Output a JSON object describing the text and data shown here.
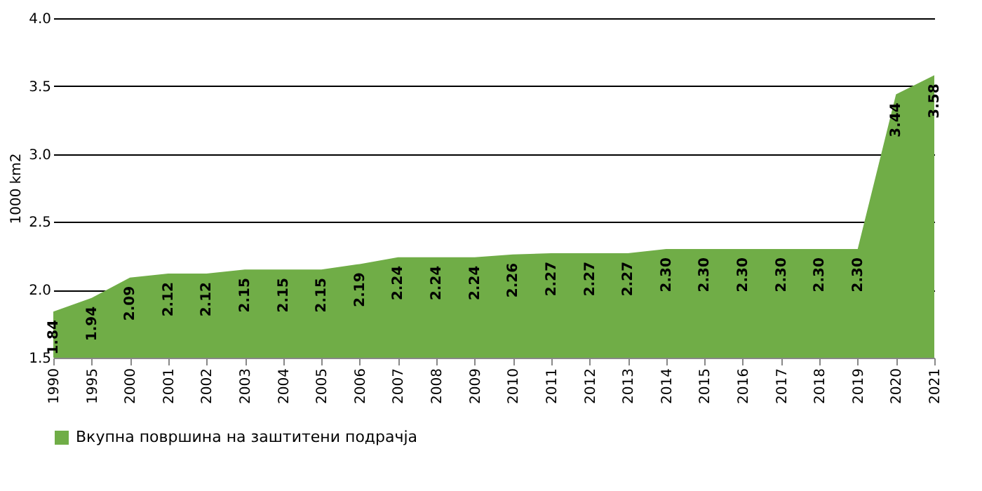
{
  "chart_data": {
    "type": "area",
    "ylabel": "1000 km2",
    "categories": [
      "1990",
      "1995",
      "2000",
      "2001",
      "2002",
      "2003",
      "2004",
      "2005",
      "2006",
      "2007",
      "2008",
      "2009",
      "2010",
      "2011",
      "2012",
      "2013",
      "2014",
      "2015",
      "2016",
      "2017",
      "2018",
      "2019",
      "2020",
      "2021"
    ],
    "series": [
      {
        "name": "Вкупна површина на заштитени подрачја",
        "color": "#70ad47",
        "values": [
          1.84,
          1.94,
          2.09,
          2.12,
          2.12,
          2.15,
          2.15,
          2.15,
          2.19,
          2.24,
          2.24,
          2.24,
          2.26,
          2.27,
          2.27,
          2.27,
          2.3,
          2.3,
          2.3,
          2.3,
          2.3,
          2.3,
          3.44,
          3.58
        ]
      }
    ],
    "value_labels": [
      "1.84",
      "1.94",
      "2.09",
      "2.12",
      "2.12",
      "2.15",
      "2.15",
      "2.15",
      "2.19",
      "2.24",
      "2.24",
      "2.24",
      "2.26",
      "2.27",
      "2.27",
      "2.27",
      "2.30",
      "2.30",
      "2.30",
      "2.30",
      "2.30",
      "2.30",
      "3.44",
      "3.58"
    ],
    "ylim": [
      1.5,
      4.0
    ],
    "yticks": [
      {
        "value": 1.5,
        "label": "1.5"
      },
      {
        "value": 2,
        "label": "2.0"
      },
      {
        "value": 2.5,
        "label": "2.5"
      },
      {
        "value": 3,
        "label": "3.0"
      },
      {
        "value": 3.5,
        "label": "3.5"
      },
      {
        "value": 4,
        "label": "4.0"
      }
    ],
    "grid": "y",
    "legend": "bottom"
  }
}
